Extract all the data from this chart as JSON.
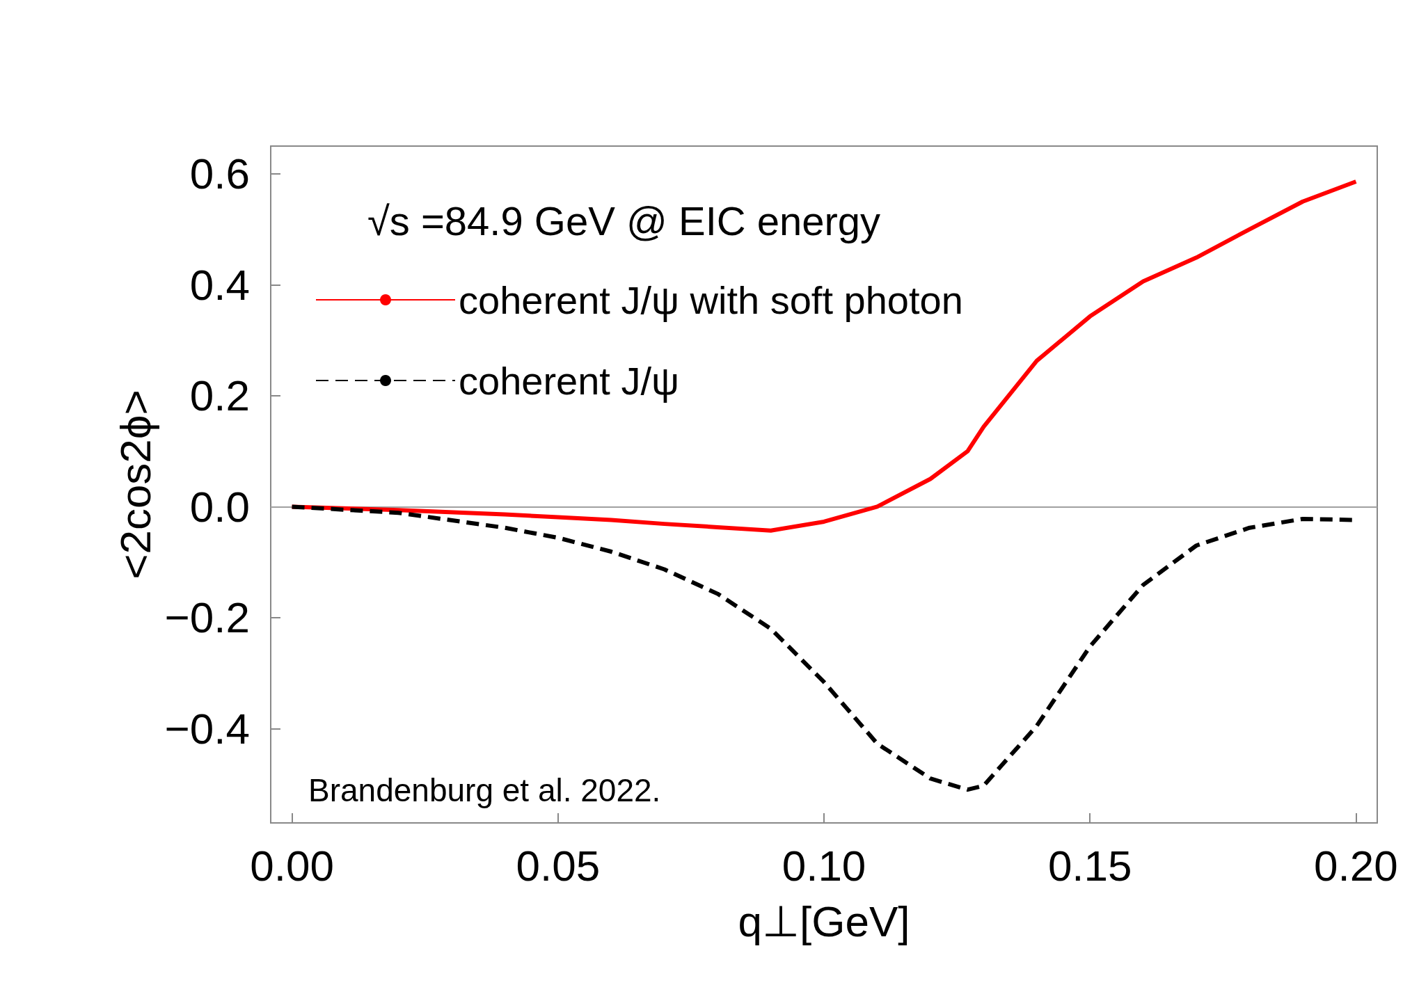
{
  "chart_data": {
    "type": "line",
    "xlabel": "q⊥[GeV]",
    "ylabel": "<2cos2ϕ>",
    "xlim": [
      -0.004,
      0.204
    ],
    "ylim": [
      -0.57,
      0.65
    ],
    "xticks": [
      {
        "value": 0,
        "label": "0.00"
      },
      {
        "value": 0.05,
        "label": "0.05"
      },
      {
        "value": 0.1,
        "label": "0.10"
      },
      {
        "value": 0.15,
        "label": "0.15"
      },
      {
        "value": 0.2,
        "label": "0.20"
      }
    ],
    "yticks": [
      {
        "value": -0.4,
        "label": "−0.4"
      },
      {
        "value": -0.2,
        "label": "−0.2"
      },
      {
        "value": 0,
        "label": "0.0"
      },
      {
        "value": 0.2,
        "label": "0.2"
      },
      {
        "value": 0.4,
        "label": "0.4"
      },
      {
        "value": 0.6,
        "label": "0.6"
      }
    ],
    "x": [
      0,
      0.02,
      0.04,
      0.05,
      0.06,
      0.07,
      0.08,
      0.09,
      0.1,
      0.11,
      0.12,
      0.127,
      0.13,
      0.14,
      0.15,
      0.16,
      0.17,
      0.18,
      0.19,
      0.2
    ],
    "series": [
      {
        "name": "coherent J/ψ with soft photon",
        "color": "#ff0000",
        "line_style": "solid",
        "values": [
          0,
          -0.006,
          -0.014,
          -0.019,
          -0.024,
          -0.031,
          -0.037,
          -0.043,
          -0.027,
          0,
          0.05,
          0.1,
          0.144,
          0.263,
          0.343,
          0.406,
          0.449,
          0.5,
          0.55,
          0.586
        ]
      },
      {
        "name": "coherent J/ψ",
        "color": "#000000",
        "line_style": "dashed",
        "values": [
          0,
          -0.011,
          -0.038,
          -0.056,
          -0.081,
          -0.113,
          -0.157,
          -0.22,
          -0.316,
          -0.427,
          -0.49,
          -0.51,
          -0.503,
          -0.395,
          -0.252,
          -0.141,
          -0.07,
          -0.038,
          -0.022,
          -0.024
        ]
      }
    ],
    "ref_lines": [
      {
        "axis": "y",
        "value": 0,
        "color": "#a0a0a0"
      }
    ],
    "legend": "top left",
    "grid": false,
    "annotations": [
      "√s =84.9 GeV @ EIC energy",
      "Brandenburg et al. 2022."
    ]
  }
}
